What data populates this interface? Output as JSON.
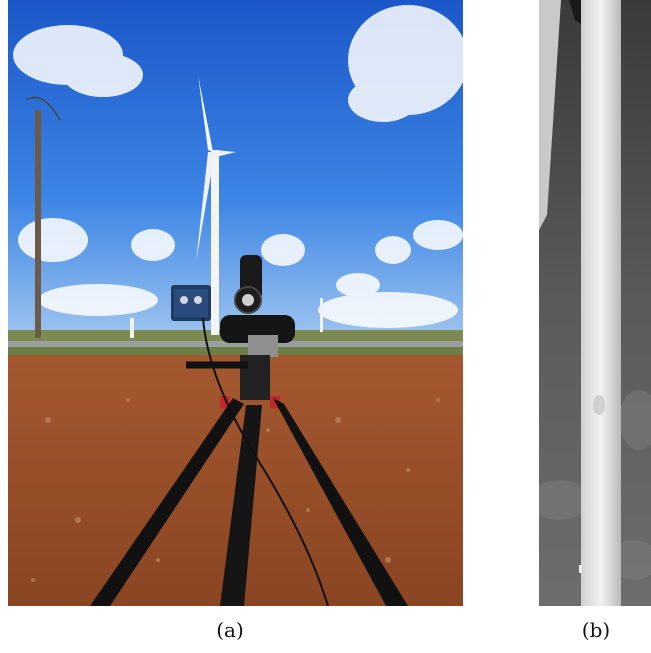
{
  "figure": {
    "panels": [
      {
        "caption": "(a)"
      },
      {
        "caption": "(b)"
      }
    ]
  }
}
